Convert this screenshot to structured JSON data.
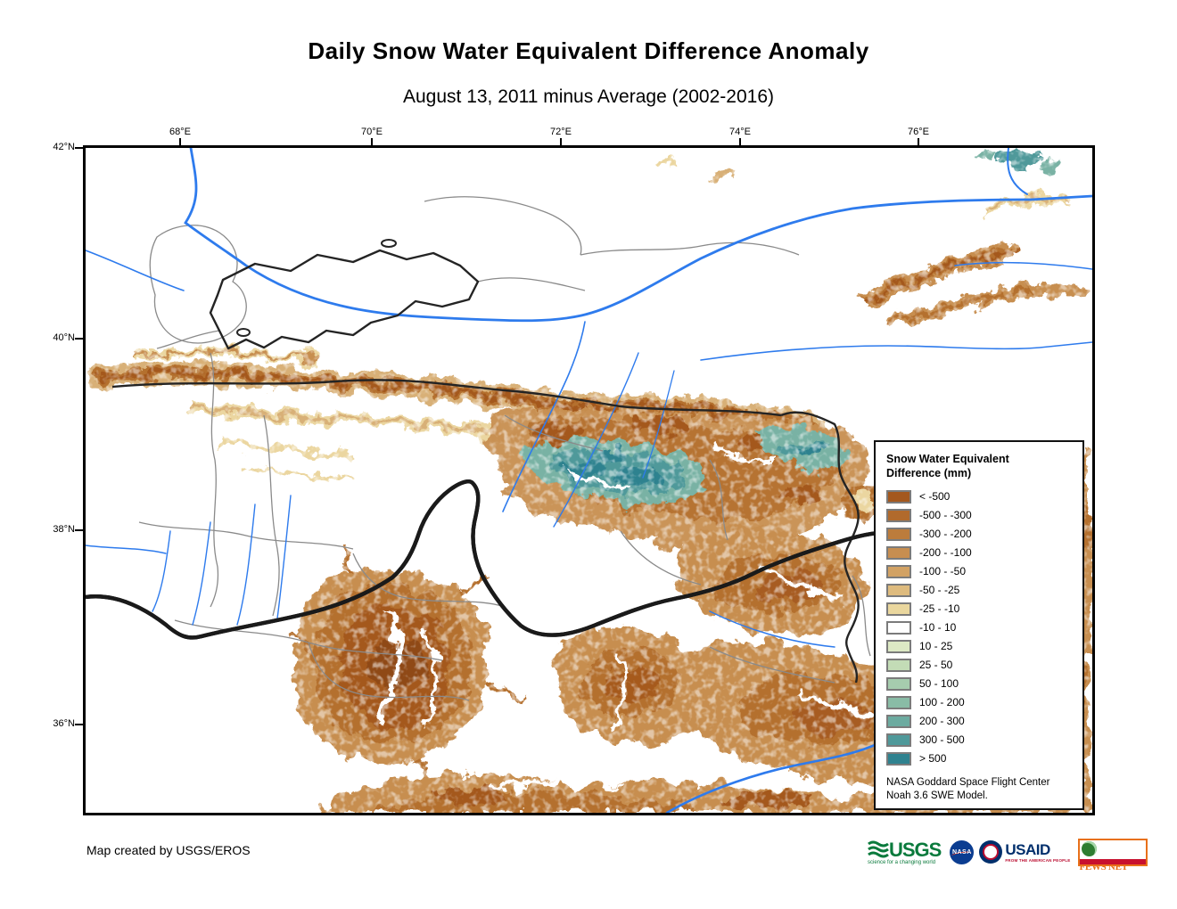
{
  "title": "Daily Snow Water Equivalent Difference Anomaly",
  "subtitle": "August 13, 2011 minus Average (2002-2016)",
  "map": {
    "lon_ticks": [
      "68°E",
      "70°E",
      "72°E",
      "74°E",
      "76°E"
    ],
    "lat_ticks": [
      "42°N",
      "40°N",
      "38°N",
      "36°N"
    ]
  },
  "legend": {
    "title_line1": "Snow Water Equivalent",
    "title_line2": "Difference (mm)",
    "entries": [
      {
        "label": "< -500",
        "color": "#A4581E"
      },
      {
        "label": "-500 - -300",
        "color": "#B16A2C"
      },
      {
        "label": "-300 - -200",
        "color": "#BC7C3C"
      },
      {
        "label": "-200 - -100",
        "color": "#C78E50"
      },
      {
        "label": "-100 - -50",
        "color": "#D2A264"
      },
      {
        "label": "-50 - -25",
        "color": "#DEBB7E"
      },
      {
        "label": "-25 - -10",
        "color": "#EAD79E"
      },
      {
        "label": "-10 - 10",
        "color": "#FFFFFF"
      },
      {
        "label": "10 - 25",
        "color": "#DDE9C4"
      },
      {
        "label": "25 - 50",
        "color": "#C3DCB6"
      },
      {
        "label": "50 - 100",
        "color": "#A6CCAE"
      },
      {
        "label": "100 - 200",
        "color": "#89BCA6"
      },
      {
        "label": "200 - 300",
        "color": "#6CABA0"
      },
      {
        "label": "300 - 500",
        "color": "#4F999A"
      },
      {
        "label": "> 500",
        "color": "#2F828F"
      }
    ],
    "note_line1": "NASA Goddard Space Flight Center",
    "note_line2": "Noah 3.6 SWE Model.",
    "swatch_border_color": "#7B7B7B"
  },
  "credit": "Map created by USGS/EROS",
  "logos": {
    "usgs": {
      "name": "USGS",
      "tagline": "science for a changing world",
      "color": "#0A7A3C"
    },
    "nasa": {
      "name": "NASA",
      "color": "#0B3D91"
    },
    "usaid": {
      "name": "USAID",
      "tagline": "FROM THE AMERICAN PEOPLE",
      "color": "#002F6C",
      "accent": "#BA0C2F"
    },
    "fewsnet": {
      "name": "FEWS NET",
      "color": "#E8701A"
    }
  },
  "map_colors": {
    "river": "#2E7BED",
    "river_major": "#1D63D8",
    "border_country": "#242424",
    "border_admin": "#8A8A8A"
  }
}
